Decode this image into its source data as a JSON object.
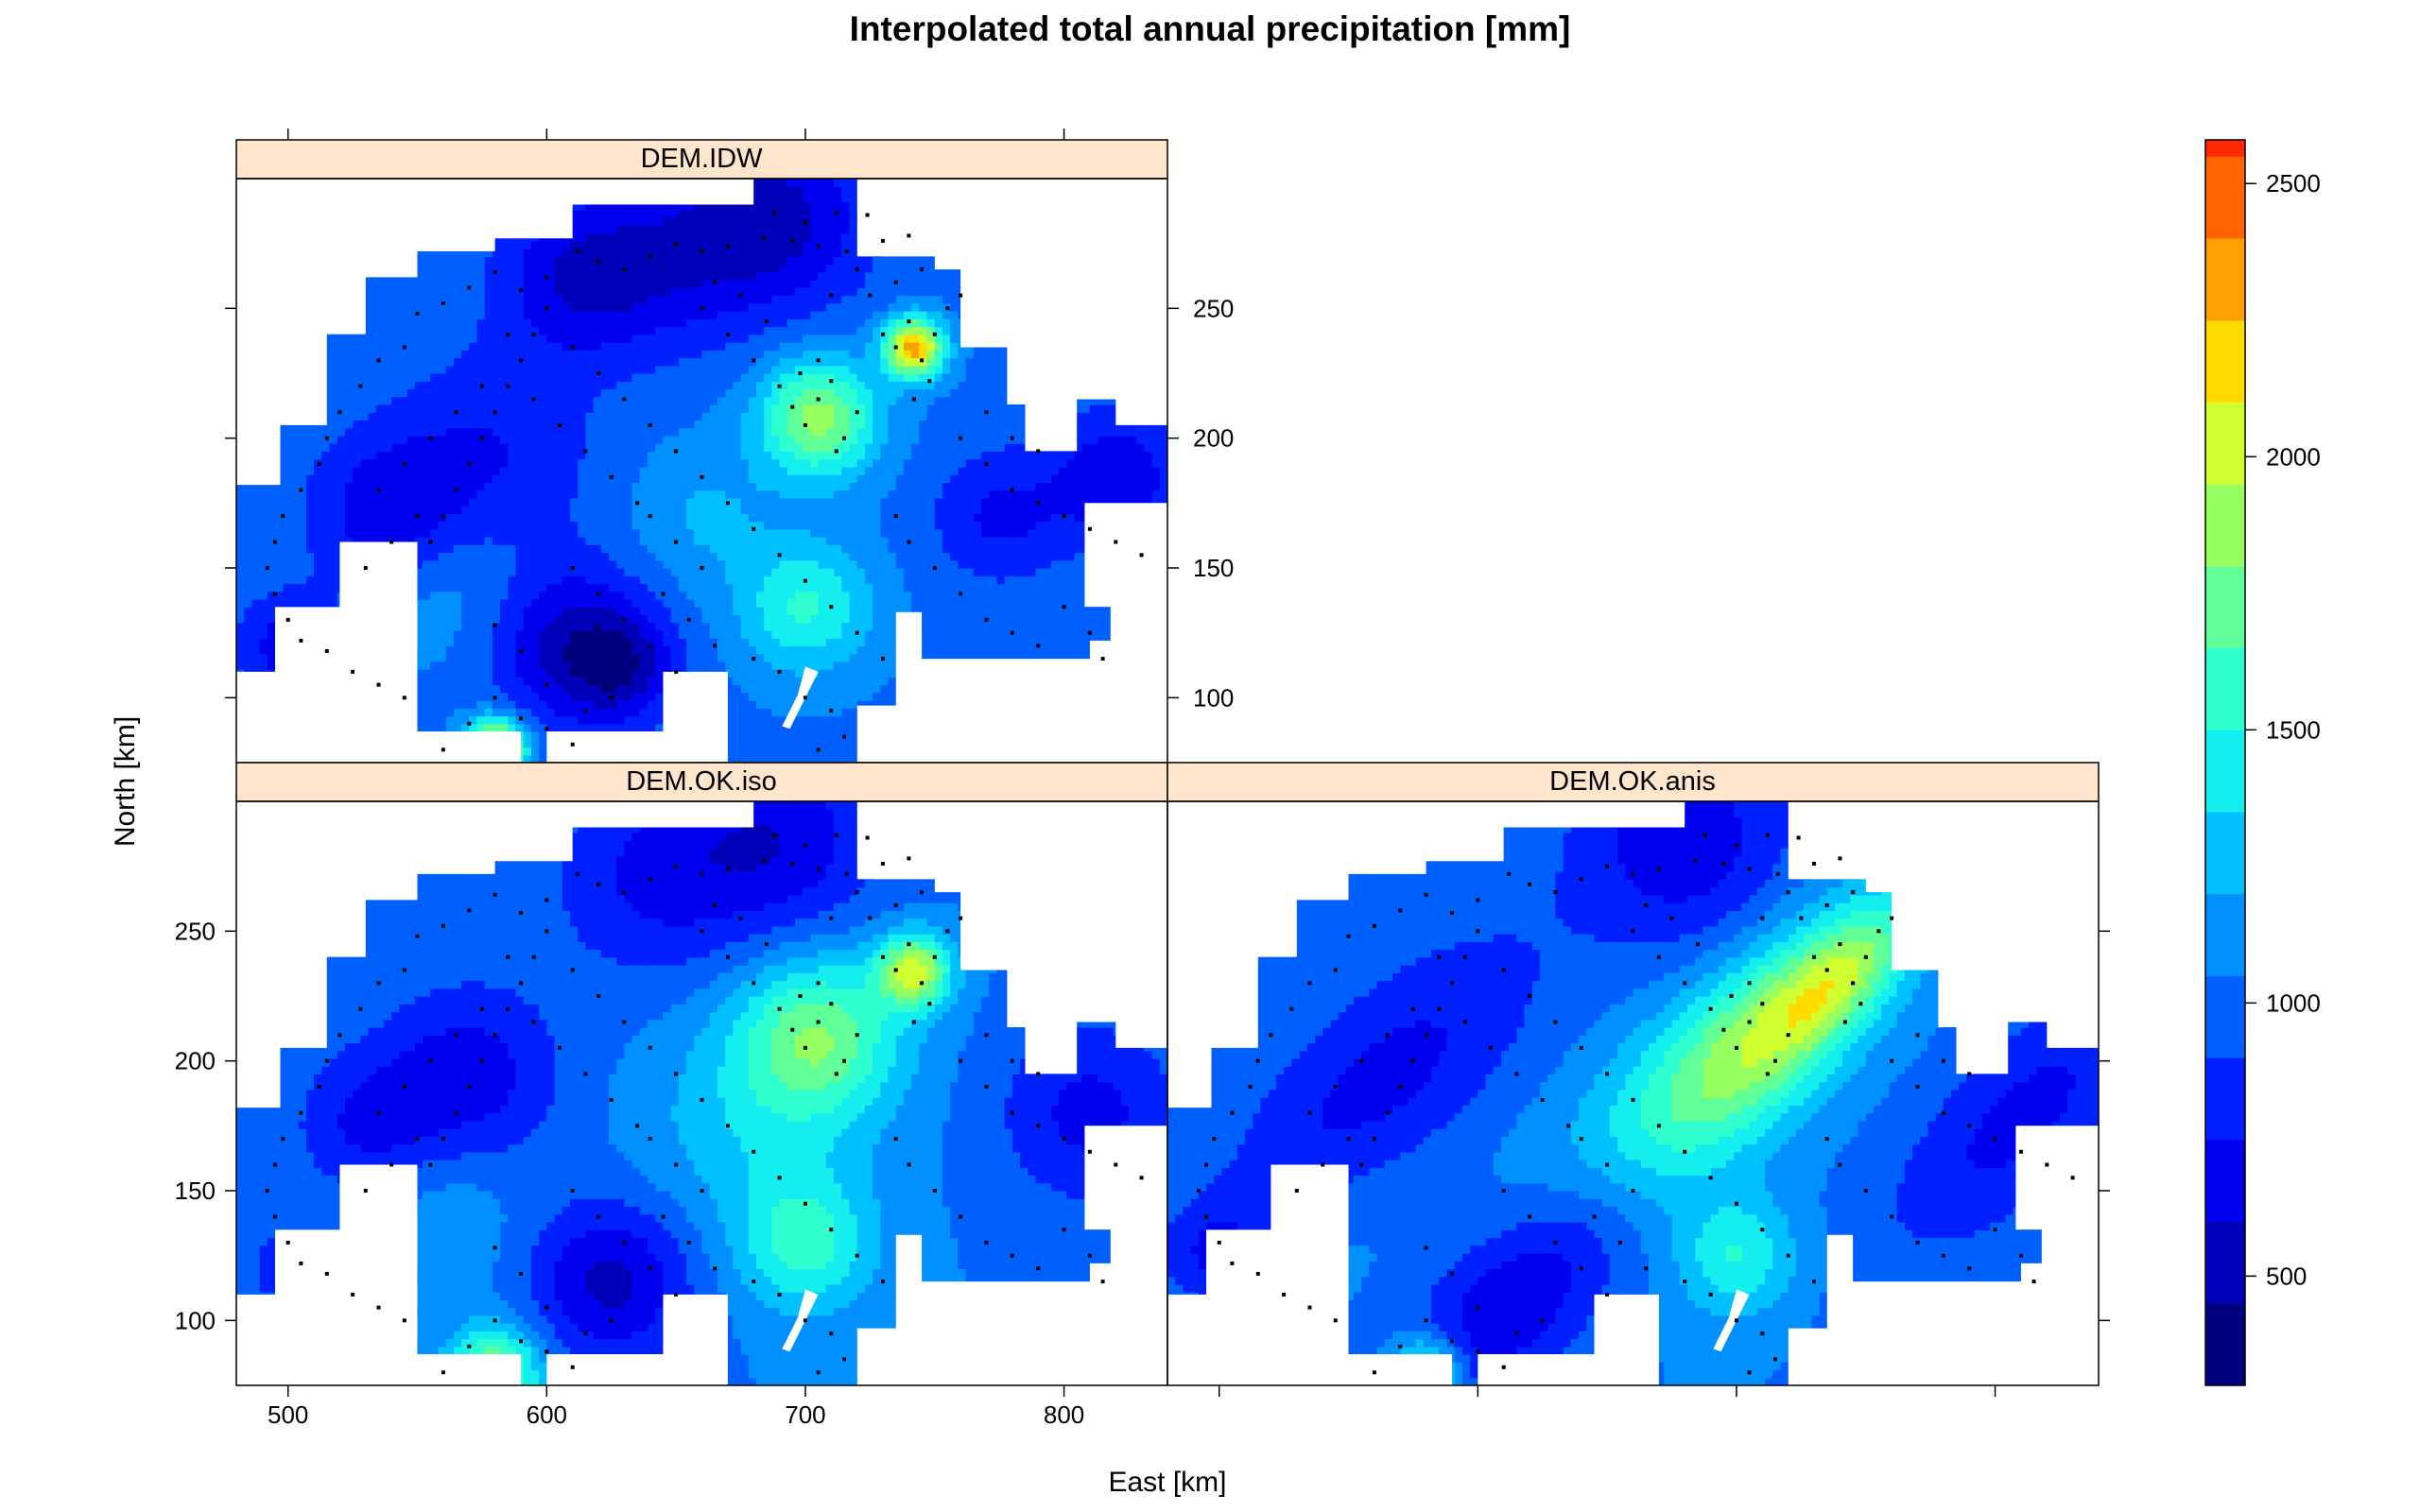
{
  "title": "Interpolated total annual precipitation [mm]",
  "chart_data": {
    "type": "heatmap",
    "title": "Interpolated total annual precipitation [mm]",
    "xlabel": "East [km]",
    "ylabel": "North [km]",
    "xlim": [
      480,
      840
    ],
    "ylim": [
      75,
      300
    ],
    "xticks": [
      500,
      600,
      700,
      800
    ],
    "yticks": [
      100,
      150,
      200,
      250
    ],
    "colorbar": {
      "range": [
        300,
        2580
      ],
      "step": 150,
      "ticks": [
        500,
        1000,
        1500,
        2000,
        2500
      ],
      "colors": [
        "#00007f",
        "#0000b8",
        "#0000f0",
        "#0020ff",
        "#0060ff",
        "#0090ff",
        "#00c0ff",
        "#15eeee",
        "#30ffcf",
        "#60ff98",
        "#98ff60",
        "#cfff30",
        "#ffdb00",
        "#ffa000",
        "#ff6400",
        "#ff2800",
        "#e00000",
        "#a80000",
        "#7f0000"
      ]
    },
    "panels": [
      {
        "name": "DEM.IDW",
        "base": 1020,
        "features": [
          {
            "x": 705,
            "y": 208,
            "r": 16,
            "v": 850
          },
          {
            "x": 742,
            "y": 235,
            "r": 8,
            "v": 1300
          },
          {
            "x": 580,
            "y": 80,
            "r": 8,
            "v": 1400
          },
          {
            "x": 700,
            "y": 135,
            "r": 18,
            "v": 500
          },
          {
            "x": 610,
            "y": 120,
            "r": 22,
            "v": -500
          },
          {
            "x": 630,
            "y": 112,
            "r": 14,
            "v": -350
          },
          {
            "x": 540,
            "y": 170,
            "r": 22,
            "v": -400
          },
          {
            "x": 580,
            "y": 195,
            "r": 28,
            "v": -250
          },
          {
            "x": 690,
            "y": 285,
            "r": 25,
            "v": -450
          },
          {
            "x": 650,
            "y": 270,
            "r": 25,
            "v": -300
          },
          {
            "x": 612,
            "y": 262,
            "r": 22,
            "v": -400
          },
          {
            "x": 820,
            "y": 185,
            "r": 18,
            "v": -400
          },
          {
            "x": 775,
            "y": 170,
            "r": 18,
            "v": -300
          },
          {
            "x": 500,
            "y": 120,
            "r": 14,
            "v": -350
          },
          {
            "x": 660,
            "y": 170,
            "r": 20,
            "v": 200
          },
          {
            "x": 560,
            "y": 145,
            "r": 22,
            "v": 200
          }
        ]
      },
      {
        "name": "DEM.OK.iso",
        "base": 1050,
        "features": [
          {
            "x": 705,
            "y": 210,
            "r": 22,
            "v": 700
          },
          {
            "x": 742,
            "y": 235,
            "r": 10,
            "v": 950
          },
          {
            "x": 580,
            "y": 80,
            "r": 12,
            "v": 850
          },
          {
            "x": 700,
            "y": 130,
            "r": 18,
            "v": 500
          },
          {
            "x": 680,
            "y": 175,
            "r": 30,
            "v": 250
          },
          {
            "x": 625,
            "y": 115,
            "r": 22,
            "v": -500
          },
          {
            "x": 570,
            "y": 195,
            "r": 25,
            "v": -380
          },
          {
            "x": 530,
            "y": 175,
            "r": 20,
            "v": -300
          },
          {
            "x": 690,
            "y": 285,
            "r": 28,
            "v": -400
          },
          {
            "x": 640,
            "y": 270,
            "r": 28,
            "v": -300
          },
          {
            "x": 810,
            "y": 180,
            "r": 25,
            "v": -350
          },
          {
            "x": 500,
            "y": 120,
            "r": 12,
            "v": -250
          },
          {
            "x": 560,
            "y": 140,
            "r": 20,
            "v": 150
          }
        ]
      },
      {
        "name": "DEM.OK.anis",
        "base": 1050,
        "features": [
          {
            "x": 710,
            "y": 210,
            "r": 24,
            "v": 700,
            "aniso": true
          },
          {
            "x": 740,
            "y": 232,
            "r": 14,
            "v": 500,
            "aniso": true
          },
          {
            "x": 580,
            "y": 80,
            "r": 10,
            "v": 750
          },
          {
            "x": 700,
            "y": 125,
            "r": 16,
            "v": 450
          },
          {
            "x": 660,
            "y": 165,
            "r": 28,
            "v": 300,
            "aniso": true
          },
          {
            "x": 620,
            "y": 115,
            "r": 24,
            "v": -550,
            "aniso": true
          },
          {
            "x": 560,
            "y": 185,
            "r": 30,
            "v": -400,
            "aniso": true
          },
          {
            "x": 680,
            "y": 285,
            "r": 30,
            "v": -400
          },
          {
            "x": 810,
            "y": 178,
            "r": 25,
            "v": -350,
            "aniso": true
          },
          {
            "x": 500,
            "y": 125,
            "r": 14,
            "v": -300
          },
          {
            "x": 540,
            "y": 140,
            "r": 25,
            "v": 150,
            "aniso": true
          }
        ]
      }
    ],
    "stations": [
      [
        700,
        283
      ],
      [
        712,
        287
      ],
      [
        688,
        287
      ],
      [
        695,
        276
      ],
      [
        705,
        274
      ],
      [
        716,
        272
      ],
      [
        724,
        286
      ],
      [
        730,
        276
      ],
      [
        740,
        278
      ],
      [
        684,
        277
      ],
      [
        670,
        274
      ],
      [
        660,
        272
      ],
      [
        650,
        275
      ],
      [
        640,
        270
      ],
      [
        630,
        265
      ],
      [
        620,
        268
      ],
      [
        612,
        272
      ],
      [
        600,
        262
      ],
      [
        590,
        257
      ],
      [
        580,
        264
      ],
      [
        570,
        258
      ],
      [
        560,
        252
      ],
      [
        550,
        248
      ],
      [
        545,
        235
      ],
      [
        535,
        230
      ],
      [
        528,
        220
      ],
      [
        520,
        210
      ],
      [
        515,
        200
      ],
      [
        512,
        190
      ],
      [
        505,
        180
      ],
      [
        498,
        170
      ],
      [
        495,
        160
      ],
      [
        492,
        150
      ],
      [
        495,
        140
      ],
      [
        500,
        130
      ],
      [
        505,
        122
      ],
      [
        515,
        118
      ],
      [
        525,
        110
      ],
      [
        535,
        105
      ],
      [
        545,
        100
      ],
      [
        555,
        160
      ],
      [
        560,
        170
      ],
      [
        565,
        180
      ],
      [
        570,
        190
      ],
      [
        575,
        200
      ],
      [
        580,
        210
      ],
      [
        585,
        220
      ],
      [
        590,
        230
      ],
      [
        595,
        240
      ],
      [
        600,
        250
      ],
      [
        610,
        235
      ],
      [
        620,
        225
      ],
      [
        630,
        215
      ],
      [
        640,
        205
      ],
      [
        650,
        195
      ],
      [
        660,
        185
      ],
      [
        670,
        175
      ],
      [
        680,
        165
      ],
      [
        690,
        155
      ],
      [
        700,
        145
      ],
      [
        710,
        135
      ],
      [
        720,
        125
      ],
      [
        730,
        115
      ],
      [
        690,
        220
      ],
      [
        695,
        212
      ],
      [
        700,
        205
      ],
      [
        705,
        215
      ],
      [
        710,
        222
      ],
      [
        715,
        200
      ],
      [
        720,
        210
      ],
      [
        712,
        195
      ],
      [
        698,
        225
      ],
      [
        705,
        230
      ],
      [
        730,
        240
      ],
      [
        735,
        235
      ],
      [
        740,
        245
      ],
      [
        745,
        230
      ],
      [
        750,
        240
      ],
      [
        755,
        250
      ],
      [
        760,
        255
      ],
      [
        748,
        222
      ],
      [
        742,
        215
      ],
      [
        760,
        200
      ],
      [
        770,
        190
      ],
      [
        780,
        180
      ],
      [
        790,
        175
      ],
      [
        800,
        170
      ],
      [
        810,
        165
      ],
      [
        820,
        160
      ],
      [
        830,
        155
      ],
      [
        790,
        195
      ],
      [
        780,
        200
      ],
      [
        770,
        210
      ],
      [
        760,
        140
      ],
      [
        770,
        130
      ],
      [
        780,
        125
      ],
      [
        790,
        120
      ],
      [
        800,
        135
      ],
      [
        810,
        125
      ],
      [
        815,
        115
      ],
      [
        750,
        150
      ],
      [
        740,
        160
      ],
      [
        735,
        170
      ],
      [
        610,
        150
      ],
      [
        620,
        140
      ],
      [
        630,
        130
      ],
      [
        640,
        120
      ],
      [
        650,
        110
      ],
      [
        625,
        100
      ],
      [
        615,
        95
      ],
      [
        600,
        105
      ],
      [
        590,
        118
      ],
      [
        580,
        128
      ],
      [
        640,
        170
      ],
      [
        650,
        160
      ],
      [
        660,
        150
      ],
      [
        645,
        140
      ],
      [
        655,
        130
      ],
      [
        665,
        120
      ],
      [
        680,
        115
      ],
      [
        690,
        110
      ],
      [
        700,
        100
      ],
      [
        710,
        95
      ],
      [
        715,
        85
      ],
      [
        705,
        80
      ],
      [
        560,
        80
      ],
      [
        570,
        90
      ],
      [
        580,
        100
      ],
      [
        590,
        92
      ],
      [
        600,
        88
      ],
      [
        610,
        82
      ],
      [
        530,
        150
      ],
      [
        540,
        160
      ],
      [
        550,
        170
      ],
      [
        535,
        180
      ],
      [
        545,
        190
      ],
      [
        555,
        200
      ],
      [
        565,
        210
      ],
      [
        575,
        220
      ],
      [
        585,
        240
      ],
      [
        595,
        215
      ],
      [
        605,
        205
      ],
      [
        615,
        195
      ],
      [
        625,
        185
      ],
      [
        635,
        175
      ],
      [
        660,
        250
      ],
      [
        670,
        240
      ],
      [
        680,
        230
      ],
      [
        665,
        260
      ],
      [
        675,
        255
      ],
      [
        685,
        245
      ],
      [
        725,
        255
      ],
      [
        735,
        260
      ],
      [
        745,
        265
      ],
      [
        720,
        265
      ],
      [
        710,
        255
      ]
    ]
  }
}
